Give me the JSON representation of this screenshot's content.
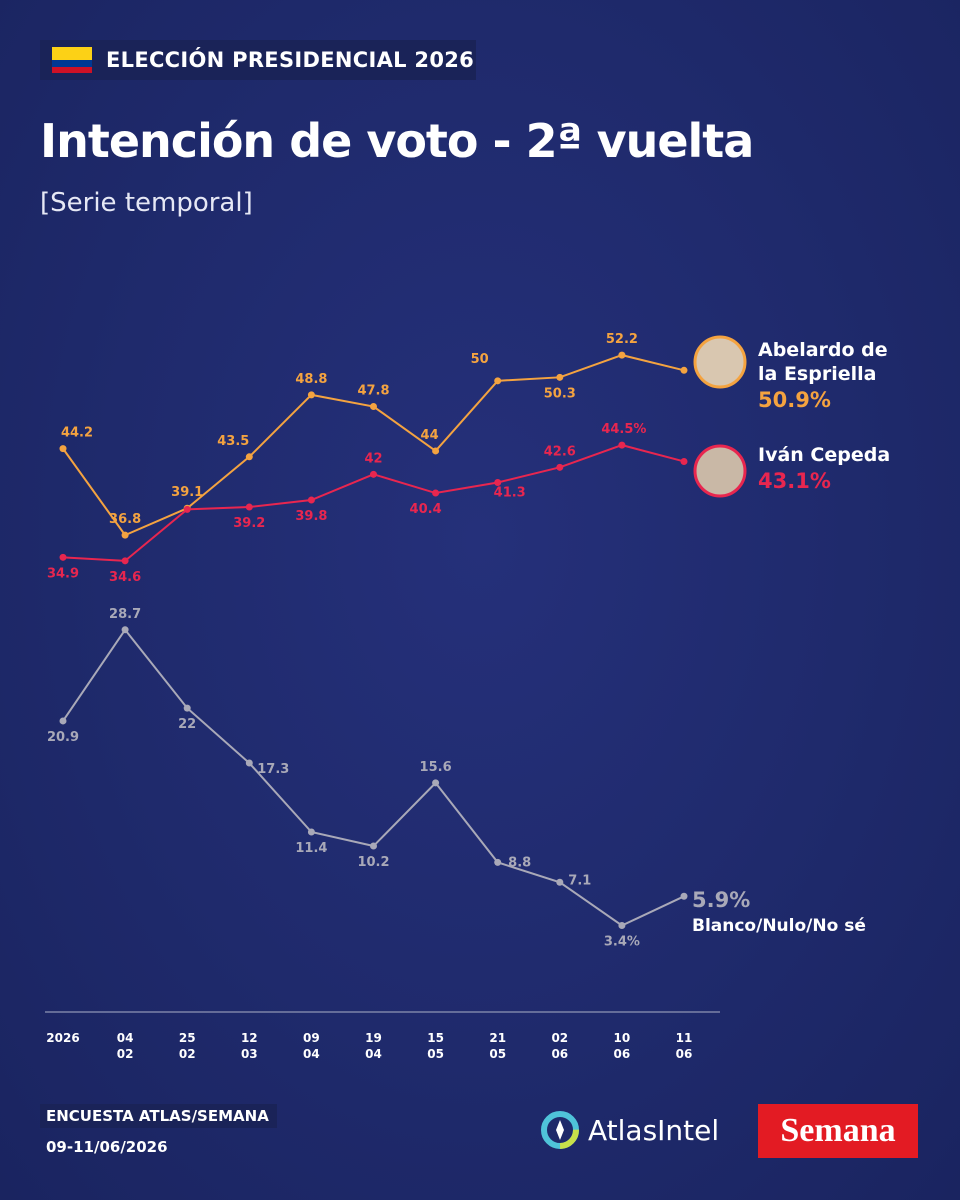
{
  "kicker": "ELECCIÓN PRESIDENCIAL 2026",
  "chart_data": {
    "type": "line",
    "title": "Intención de voto - 2ª vuelta",
    "subtitle": "[Serie temporal]",
    "categories": [
      "2026",
      "04\n02",
      "25\n02",
      "12\n03",
      "09\n04",
      "19\n04",
      "15\n05",
      "21\n05",
      "02\n06",
      "10\n06",
      "11\n06"
    ],
    "series": [
      {
        "name": "Abelardo de la Espriella",
        "color": "#f4a340",
        "values": [
          44.2,
          36.8,
          39.1,
          43.5,
          48.8,
          47.8,
          44,
          50,
          50.3,
          52.2,
          50.9
        ],
        "value_labels": [
          "44.2",
          "36.8",
          "39.1",
          "43.5",
          "48.8",
          "47.8",
          "44",
          "50",
          "50.3",
          "52.2",
          "50.9%"
        ]
      },
      {
        "name": "Iván Cepeda",
        "color": "#e8264f",
        "values": [
          34.9,
          34.6,
          39.0,
          39.2,
          39.8,
          42,
          40.4,
          41.3,
          42.6,
          44.5,
          43.1
        ],
        "value_labels": [
          "34.9",
          "34.6",
          null,
          "39.2",
          "39.8",
          "42",
          "40.4",
          "41.3",
          "42.6",
          "44.5%",
          "43.1%"
        ]
      },
      {
        "name": "Blanco/Nulo/No sé",
        "color": "#a9a9b8",
        "values": [
          20.9,
          28.7,
          22,
          17.3,
          11.4,
          10.2,
          15.6,
          8.8,
          7.1,
          3.4,
          5.9
        ],
        "value_labels": [
          "20.9",
          "28.7",
          "22",
          "17.3",
          "11.4",
          "10.2",
          "15.6",
          "8.8",
          "7.1",
          "3.4%",
          "5.9%"
        ]
      }
    ],
    "ylim": [
      -4,
      57
    ]
  },
  "footer": {
    "source": "ENCUESTA ATLAS/SEMANA",
    "date": "09-11/06/2026",
    "brands": [
      "AtlasIntel",
      "Semana"
    ]
  }
}
